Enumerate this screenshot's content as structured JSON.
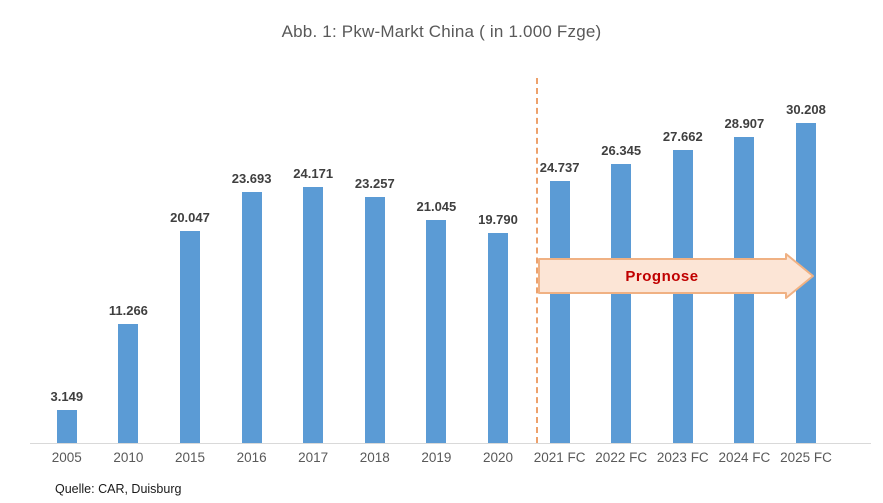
{
  "title": "Abb. 1: Pkw-Markt China ( in 1.000 Fzge)",
  "source": "Quelle: CAR, Duisburg",
  "annotation": {
    "prognose_label": "Prognose"
  },
  "colors": {
    "bar": "#5b9bd5",
    "dashed_divider": "#eda16c",
    "arrow_fill": "#fce5d6",
    "arrow_border": "#f0b183",
    "arrow_text": "#c00000",
    "axis_line": "#d9d9d9",
    "title_text": "#595959",
    "value_label_text": "#3f3f3f",
    "axis_label_text": "#595959"
  },
  "chart_data": {
    "type": "bar",
    "title": "Abb. 1: Pkw-Markt China ( in 1.000 Fzge)",
    "categories": [
      "2005",
      "2010",
      "2015",
      "2016",
      "2017",
      "2018",
      "2019",
      "2020",
      "2021 FC",
      "2022 FC",
      "2023 FC",
      "2024 FC",
      "2025 FC"
    ],
    "values": [
      3149,
      11266,
      20047,
      23693,
      24171,
      23257,
      21045,
      19790,
      24737,
      26345,
      27662,
      28907,
      30208
    ],
    "value_labels": [
      "3.149",
      "11.266",
      "20.047",
      "23.693",
      "24.171",
      "23.257",
      "21.045",
      "19.790",
      "24.737",
      "26.345",
      "27.662",
      "28.907",
      "30.208"
    ],
    "forecast_start_index": 8,
    "forecast_annotation": "Prognose",
    "xlabel": "",
    "ylabel": "",
    "ylim": [
      0,
      32000
    ],
    "grid": false,
    "legend": false,
    "y_axis_shown": false,
    "source": "Quelle: CAR, Duisburg"
  }
}
